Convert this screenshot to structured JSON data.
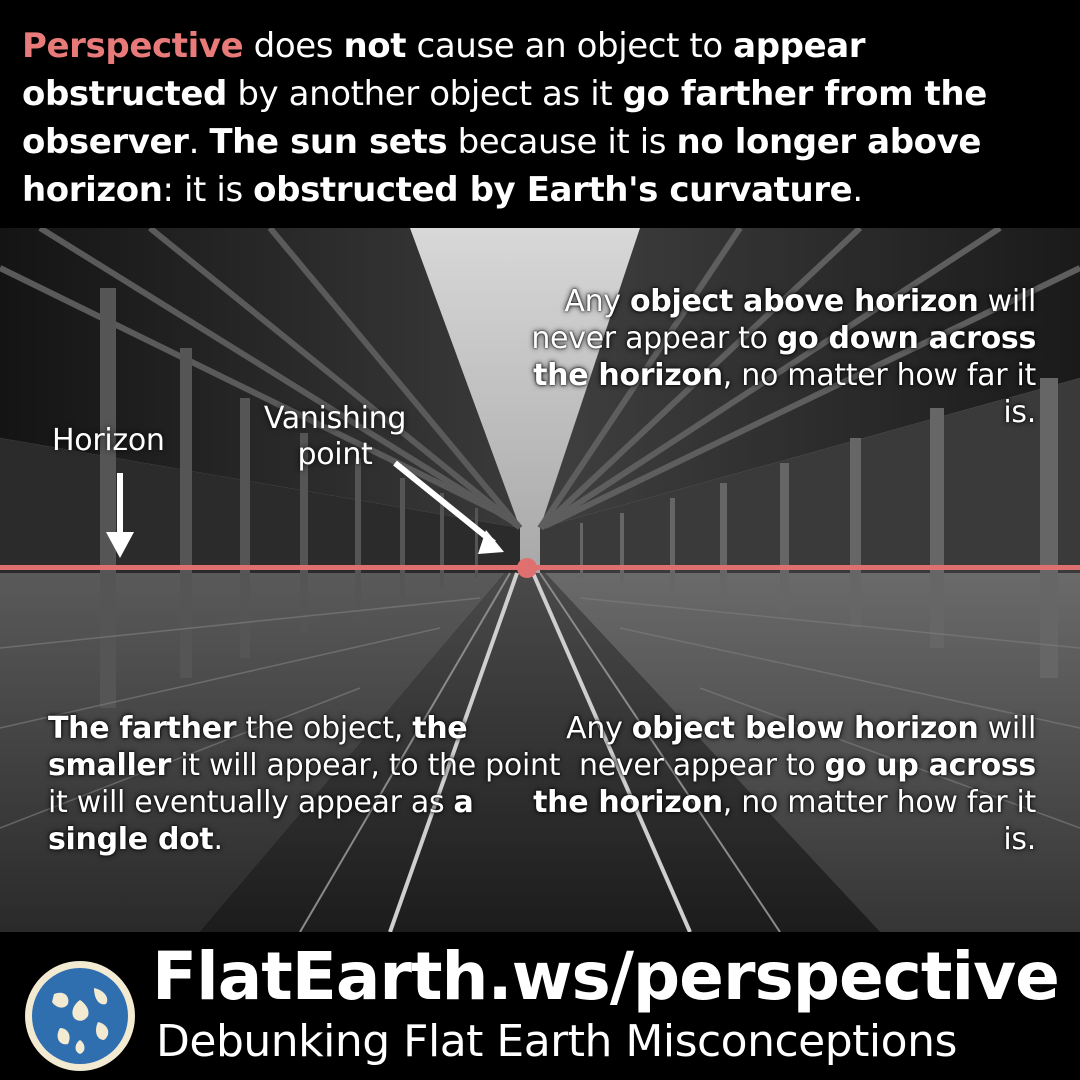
{
  "headline": [
    {
      "text": "Perspective",
      "style": "accent"
    },
    {
      "text": " does ",
      "style": ""
    },
    {
      "text": "not",
      "style": "bold"
    },
    {
      "text": " cause an object to ",
      "style": ""
    },
    {
      "text": "appear obstructed",
      "style": "bold"
    },
    {
      "text": " by another object as it ",
      "style": ""
    },
    {
      "text": "go farther from the observer",
      "style": "bold"
    },
    {
      "text": ". ",
      "style": ""
    },
    {
      "text": "The sun sets",
      "style": "bold"
    },
    {
      "text": " because it is ",
      "style": ""
    },
    {
      "text": "no longer above horizon",
      "style": "bold"
    },
    {
      "text": ": it is ",
      "style": ""
    },
    {
      "text": "obstructed by Earth's curvature",
      "style": "bold"
    },
    {
      "text": ".",
      "style": ""
    }
  ],
  "notes": {
    "above": [
      {
        "text": "Any ",
        "style": ""
      },
      {
        "text": "object above horizon",
        "style": "bold"
      },
      {
        "text": " will never appear to ",
        "style": ""
      },
      {
        "text": "go down across the horizon",
        "style": "bold"
      },
      {
        "text": ", no matter how far it is.",
        "style": ""
      }
    ],
    "below": [
      {
        "text": "Any ",
        "style": ""
      },
      {
        "text": "object below horizon",
        "style": "bold"
      },
      {
        "text": " will never appear to ",
        "style": ""
      },
      {
        "text": "go up across the horizon",
        "style": "bold"
      },
      {
        "text": ", no matter how far it is.",
        "style": ""
      }
    ],
    "farther": [
      {
        "text": "The farther",
        "style": "bold"
      },
      {
        "text": " the object, ",
        "style": ""
      },
      {
        "text": "the smaller",
        "style": "bold"
      },
      {
        "text": " it will appear, to the point it will eventually appear as ",
        "style": ""
      },
      {
        "text": "a single dot",
        "style": "bold"
      },
      {
        "text": ".",
        "style": ""
      }
    ]
  },
  "labels": {
    "horizon": "Horizon",
    "vanishing_point": "Vanishing point"
  },
  "footer": {
    "site_url": "FlatEarth.ws/perspective",
    "tagline": "Debunking Flat Earth Misconceptions",
    "logo_icon": "globe-icon"
  },
  "colors": {
    "accent": "#e87a7a",
    "horizon_line": "#e06f6f",
    "background": "#000000",
    "text": "#ffffff"
  }
}
